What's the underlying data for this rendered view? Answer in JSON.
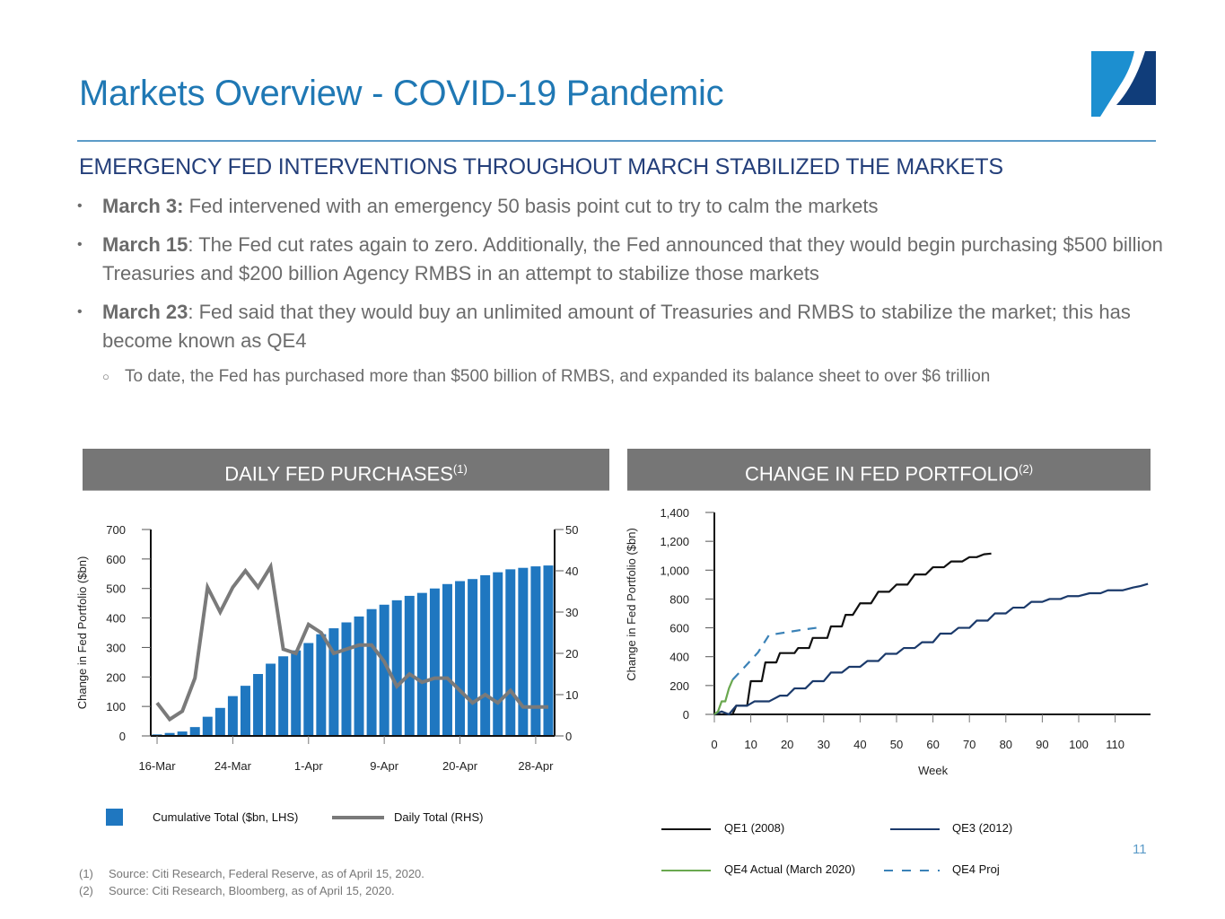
{
  "header": {
    "title": "Markets Overview - COVID-19 Pandemic",
    "logo_icon": "brand-logo-icon",
    "subtitle": "EMERGENCY FED INTERVENTIONS THROUGHOUT MARCH STABILIZED THE MARKETS"
  },
  "bullets": [
    {
      "bold": "March 3:",
      "text": " Fed intervened with an emergency 50 basis point cut to try to calm the markets"
    },
    {
      "bold": "March 15",
      "text": ": The Fed cut rates again to zero. Additionally, the Fed announced that they would begin purchasing $500 billion Treasuries and $200 billion Agency RMBS in an attempt to stabilize those markets"
    },
    {
      "bold": "March 23",
      "text": ": Fed said that they would buy an unlimited amount of Treasuries and RMBS to stabilize the market; this has become known as QE4"
    }
  ],
  "sub_bullet": "To date, the Fed has purchased more than $500 billion of RMBS, and expanded its balance sheet to over $6 trillion",
  "panels": {
    "left_title": "DAILY FED PURCHASES",
    "left_sup": "(1)",
    "right_title": "CHANGE IN FED PORTFOLIO",
    "right_sup": "(2)"
  },
  "chart_data": [
    {
      "type": "bar",
      "title": "DAILY FED PURCHASES",
      "xlabel": "",
      "ylabel": "Change in Fed Portfolio ($bn)",
      "y2label": "",
      "ylim": [
        0,
        700
      ],
      "y2lim": [
        0,
        50
      ],
      "yticks": [
        "0",
        "100",
        "200",
        "300",
        "400",
        "500",
        "600",
        "700"
      ],
      "y2ticks": [
        "0",
        "10",
        "20",
        "30",
        "40",
        "50"
      ],
      "xtick_labels": [
        "16-Mar",
        "24-Mar",
        "1-Apr",
        "9-Apr",
        "20-Apr",
        "28-Apr"
      ],
      "xtick_positions": [
        0,
        6,
        12,
        18,
        24,
        30
      ],
      "grid": false,
      "legend_position": "bottom",
      "series": [
        {
          "name": "Cumulative Total ($bn, LHS)",
          "type": "bar",
          "axis": "left",
          "color": "#1f77c0",
          "values": [
            5,
            10,
            15,
            30,
            65,
            95,
            135,
            170,
            210,
            245,
            270,
            290,
            315,
            345,
            365,
            385,
            405,
            430,
            445,
            460,
            475,
            485,
            500,
            515,
            525,
            532,
            545,
            555,
            565,
            570,
            575,
            578
          ]
        },
        {
          "name": "Daily Total (RHS)",
          "type": "line",
          "axis": "right",
          "color": "#7a7a7a",
          "values": [
            8,
            4,
            6,
            14,
            36,
            30,
            36,
            40,
            36,
            41,
            21,
            20,
            27,
            25,
            20,
            21,
            22,
            22,
            18,
            12,
            15,
            13,
            14,
            14,
            11,
            8,
            10,
            8,
            11,
            7,
            7,
            7
          ]
        }
      ]
    },
    {
      "type": "line",
      "title": "CHANGE IN FED PORTFOLIO",
      "xlabel": "Week",
      "ylabel": "Change in Fed Portfolio ($bn)",
      "xlim": [
        0,
        120
      ],
      "ylim": [
        0,
        1400
      ],
      "xticks": [
        "0",
        "10",
        "20",
        "30",
        "40",
        "50",
        "60",
        "70",
        "80",
        "90",
        "100",
        "110"
      ],
      "yticks": [
        "0",
        "200",
        "400",
        "600",
        "800",
        "1,000",
        "1,200",
        "1,400"
      ],
      "grid": false,
      "legend_position": "bottom",
      "series": [
        {
          "name": "QE1 (2008)",
          "color": "#111111",
          "dash": false,
          "points": [
            [
              0,
              0
            ],
            [
              5,
              0
            ],
            [
              6,
              60
            ],
            [
              9,
              60
            ],
            [
              10,
              230
            ],
            [
              13,
              230
            ],
            [
              14,
              360
            ],
            [
              17,
              360
            ],
            [
              18,
              425
            ],
            [
              22,
              425
            ],
            [
              23,
              460
            ],
            [
              26,
              460
            ],
            [
              27,
              530
            ],
            [
              31,
              530
            ],
            [
              32,
              610
            ],
            [
              35,
              610
            ],
            [
              36,
              690
            ],
            [
              38,
              690
            ],
            [
              40,
              770
            ],
            [
              43,
              770
            ],
            [
              45,
              850
            ],
            [
              48,
              850
            ],
            [
              50,
              900
            ],
            [
              53,
              900
            ],
            [
              55,
              970
            ],
            [
              58,
              970
            ],
            [
              60,
              1020
            ],
            [
              63,
              1020
            ],
            [
              65,
              1060
            ],
            [
              68,
              1060
            ],
            [
              70,
              1090
            ],
            [
              72,
              1090
            ],
            [
              74,
              1110
            ],
            [
              76,
              1115
            ]
          ]
        },
        {
          "name": "QE3 (2012)",
          "color": "#1b3a6b",
          "dash": false,
          "points": [
            [
              0,
              0
            ],
            [
              2,
              20
            ],
            [
              4,
              0
            ],
            [
              6,
              60
            ],
            [
              9,
              60
            ],
            [
              11,
              90
            ],
            [
              15,
              90
            ],
            [
              18,
              130
            ],
            [
              20,
              130
            ],
            [
              22,
              180
            ],
            [
              25,
              180
            ],
            [
              27,
              230
            ],
            [
              30,
              230
            ],
            [
              32,
              290
            ],
            [
              35,
              290
            ],
            [
              37,
              330
            ],
            [
              40,
              330
            ],
            [
              42,
              370
            ],
            [
              45,
              370
            ],
            [
              47,
              420
            ],
            [
              50,
              420
            ],
            [
              52,
              460
            ],
            [
              55,
              460
            ],
            [
              57,
              500
            ],
            [
              60,
              500
            ],
            [
              62,
              560
            ],
            [
              65,
              560
            ],
            [
              67,
              600
            ],
            [
              70,
              600
            ],
            [
              72,
              650
            ],
            [
              75,
              650
            ],
            [
              77,
              700
            ],
            [
              80,
              700
            ],
            [
              82,
              740
            ],
            [
              85,
              740
            ],
            [
              87,
              780
            ],
            [
              90,
              780
            ],
            [
              92,
              800
            ],
            [
              95,
              800
            ],
            [
              97,
              820
            ],
            [
              100,
              820
            ],
            [
              103,
              840
            ],
            [
              106,
              840
            ],
            [
              108,
              860
            ],
            [
              112,
              860
            ],
            [
              115,
              880
            ],
            [
              117,
              890
            ],
            [
              119,
              905
            ]
          ]
        },
        {
          "name": "QE4 Actual (March 2020)",
          "color": "#6aa84f",
          "dash": false,
          "points": [
            [
              0,
              0
            ],
            [
              1,
              20
            ],
            [
              2,
              90
            ],
            [
              3,
              90
            ],
            [
              4,
              180
            ],
            [
              5,
              240
            ]
          ]
        },
        {
          "name": "QE4 Proj",
          "color": "#3b82b7",
          "dash": true,
          "points": [
            [
              5,
              240
            ],
            [
              8,
              320
            ],
            [
              12,
              430
            ],
            [
              15,
              550
            ],
            [
              20,
              570
            ],
            [
              25,
              590
            ],
            [
              28,
              600
            ]
          ]
        }
      ]
    }
  ],
  "legend_left": {
    "bar_label": "Cumulative Total ($bn, LHS)",
    "line_label": "Daily Total (RHS)"
  },
  "legend_right": {
    "qe1": "QE1 (2008)",
    "qe3": "QE3 (2012)",
    "qe4_actual": "QE4 Actual (March 2020)",
    "qe4_proj": "QE4 Proj"
  },
  "page_number": "11",
  "footnotes": [
    {
      "num": "(1)",
      "text": "Source: Citi Research, Federal Reserve, as of April 15, 2020."
    },
    {
      "num": "(2)",
      "text": "Source: Citi Research, Bloomberg, as of April 15, 2020."
    }
  ]
}
